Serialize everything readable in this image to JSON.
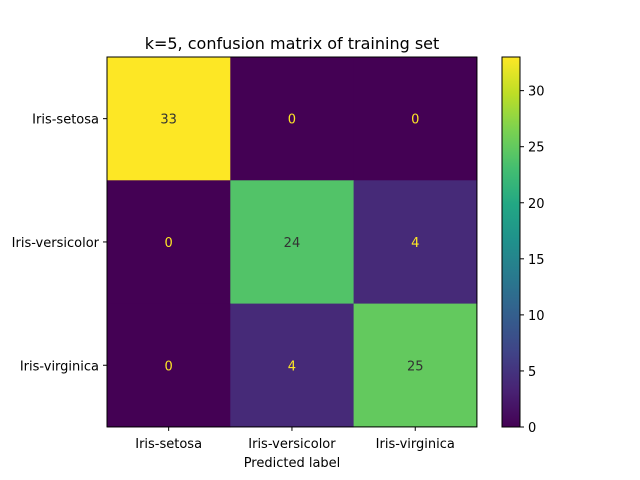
{
  "chart_data": {
    "type": "heatmap",
    "title": "k=5, confusion matrix of training set",
    "xlabel": "Predicted label",
    "ylabel": "",
    "row_labels": [
      "Iris-setosa",
      "Iris-versicolor",
      "Iris-virginica"
    ],
    "col_labels": [
      "Iris-setosa",
      "Iris-versicolor",
      "Iris-virginica"
    ],
    "matrix": [
      [
        33,
        0,
        0
      ],
      [
        0,
        24,
        4
      ],
      [
        0,
        4,
        25
      ]
    ],
    "colorbar": {
      "colormap": "viridis",
      "range": [
        0,
        33
      ],
      "ticks": [
        0,
        5,
        10,
        15,
        20,
        25,
        30
      ]
    }
  }
}
